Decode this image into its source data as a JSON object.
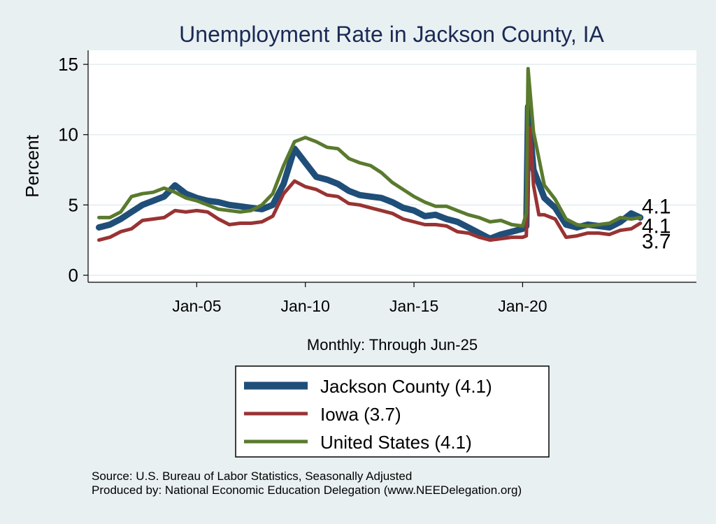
{
  "chart_data": {
    "type": "line",
    "title": "Unemployment Rate in Jackson  County, IA",
    "xlabel": "Monthly: Through Jun-25",
    "ylabel": "Percent",
    "ylim": [
      -0.5,
      16
    ],
    "yticks": [
      0,
      5,
      10,
      15
    ],
    "xlim": [
      2000.0,
      2028.0
    ],
    "xticks": [
      {
        "value": 2005.0,
        "label": "Jan-05"
      },
      {
        "value": 2010.0,
        "label": "Jan-10"
      },
      {
        "value": 2015.0,
        "label": "Jan-15"
      },
      {
        "value": 2020.0,
        "label": "Jan-20"
      }
    ],
    "grid": true,
    "legend_position": "bottom",
    "series": [
      {
        "name": "Jackson  County (4.1)",
        "color": "#1f4e79",
        "last_label": "4.1",
        "points": [
          [
            2000.5,
            3.4
          ],
          [
            2001.0,
            3.6
          ],
          [
            2001.5,
            4.0
          ],
          [
            2002.0,
            4.5
          ],
          [
            2002.5,
            5.0
          ],
          [
            2003.0,
            5.3
          ],
          [
            2003.5,
            5.6
          ],
          [
            2004.0,
            6.4
          ],
          [
            2004.5,
            5.8
          ],
          [
            2005.0,
            5.5
          ],
          [
            2005.5,
            5.3
          ],
          [
            2006.0,
            5.2
          ],
          [
            2006.5,
            5.0
          ],
          [
            2007.0,
            4.9
          ],
          [
            2007.5,
            4.8
          ],
          [
            2008.0,
            4.7
          ],
          [
            2008.5,
            5.0
          ],
          [
            2009.0,
            6.5
          ],
          [
            2009.5,
            9.0
          ],
          [
            2010.0,
            8.0
          ],
          [
            2010.5,
            7.0
          ],
          [
            2011.0,
            6.8
          ],
          [
            2011.5,
            6.5
          ],
          [
            2012.0,
            6.0
          ],
          [
            2012.5,
            5.7
          ],
          [
            2013.0,
            5.6
          ],
          [
            2013.5,
            5.5
          ],
          [
            2014.0,
            5.2
          ],
          [
            2014.5,
            4.8
          ],
          [
            2015.0,
            4.6
          ],
          [
            2015.5,
            4.2
          ],
          [
            2016.0,
            4.3
          ],
          [
            2016.5,
            4.0
          ],
          [
            2017.0,
            3.8
          ],
          [
            2017.5,
            3.4
          ],
          [
            2018.0,
            3.0
          ],
          [
            2018.5,
            2.6
          ],
          [
            2019.0,
            2.9
          ],
          [
            2019.5,
            3.1
          ],
          [
            2020.0,
            3.3
          ],
          [
            2020.17,
            3.5
          ],
          [
            2020.25,
            12.0
          ],
          [
            2020.5,
            7.5
          ],
          [
            2021.0,
            5.5
          ],
          [
            2021.5,
            4.8
          ],
          [
            2022.0,
            3.6
          ],
          [
            2022.5,
            3.4
          ],
          [
            2023.0,
            3.6
          ],
          [
            2023.5,
            3.5
          ],
          [
            2024.0,
            3.4
          ],
          [
            2024.5,
            3.8
          ],
          [
            2025.0,
            4.4
          ],
          [
            2025.42,
            4.1
          ]
        ]
      },
      {
        "name": "Iowa (3.7)",
        "color": "#993333",
        "last_label": "3.7",
        "points": [
          [
            2000.5,
            2.5
          ],
          [
            2001.0,
            2.7
          ],
          [
            2001.5,
            3.1
          ],
          [
            2002.0,
            3.3
          ],
          [
            2002.5,
            3.9
          ],
          [
            2003.0,
            4.0
          ],
          [
            2003.5,
            4.1
          ],
          [
            2004.0,
            4.6
          ],
          [
            2004.5,
            4.5
          ],
          [
            2005.0,
            4.6
          ],
          [
            2005.5,
            4.5
          ],
          [
            2006.0,
            4.0
          ],
          [
            2006.5,
            3.6
          ],
          [
            2007.0,
            3.7
          ],
          [
            2007.5,
            3.7
          ],
          [
            2008.0,
            3.8
          ],
          [
            2008.5,
            4.2
          ],
          [
            2009.0,
            5.8
          ],
          [
            2009.5,
            6.7
          ],
          [
            2010.0,
            6.3
          ],
          [
            2010.5,
            6.1
          ],
          [
            2011.0,
            5.7
          ],
          [
            2011.5,
            5.6
          ],
          [
            2012.0,
            5.1
          ],
          [
            2012.5,
            5.0
          ],
          [
            2013.0,
            4.8
          ],
          [
            2013.5,
            4.6
          ],
          [
            2014.0,
            4.4
          ],
          [
            2014.5,
            4.0
          ],
          [
            2015.0,
            3.8
          ],
          [
            2015.5,
            3.6
          ],
          [
            2016.0,
            3.6
          ],
          [
            2016.5,
            3.5
          ],
          [
            2017.0,
            3.1
          ],
          [
            2017.5,
            3.0
          ],
          [
            2018.0,
            2.7
          ],
          [
            2018.5,
            2.5
          ],
          [
            2019.0,
            2.6
          ],
          [
            2019.5,
            2.7
          ],
          [
            2020.0,
            2.7
          ],
          [
            2020.17,
            2.8
          ],
          [
            2020.33,
            10.5
          ],
          [
            2020.5,
            6.4
          ],
          [
            2020.75,
            4.3
          ],
          [
            2021.0,
            4.3
          ],
          [
            2021.5,
            4.0
          ],
          [
            2022.0,
            2.7
          ],
          [
            2022.5,
            2.8
          ],
          [
            2023.0,
            3.0
          ],
          [
            2023.5,
            3.0
          ],
          [
            2024.0,
            2.9
          ],
          [
            2024.5,
            3.2
          ],
          [
            2025.0,
            3.3
          ],
          [
            2025.42,
            3.7
          ]
        ]
      },
      {
        "name": "United States (4.1)",
        "color": "#5a7a2e",
        "last_label": "4.1",
        "points": [
          [
            2000.5,
            4.1
          ],
          [
            2001.0,
            4.1
          ],
          [
            2001.5,
            4.5
          ],
          [
            2002.0,
            5.6
          ],
          [
            2002.5,
            5.8
          ],
          [
            2003.0,
            5.9
          ],
          [
            2003.5,
            6.2
          ],
          [
            2004.0,
            5.9
          ],
          [
            2004.5,
            5.5
          ],
          [
            2005.0,
            5.3
          ],
          [
            2005.5,
            5.0
          ],
          [
            2006.0,
            4.7
          ],
          [
            2006.5,
            4.6
          ],
          [
            2007.0,
            4.5
          ],
          [
            2007.5,
            4.6
          ],
          [
            2008.0,
            5.0
          ],
          [
            2008.5,
            5.8
          ],
          [
            2009.0,
            7.8
          ],
          [
            2009.5,
            9.5
          ],
          [
            2010.0,
            9.8
          ],
          [
            2010.5,
            9.5
          ],
          [
            2011.0,
            9.1
          ],
          [
            2011.5,
            9.0
          ],
          [
            2012.0,
            8.3
          ],
          [
            2012.5,
            8.0
          ],
          [
            2013.0,
            7.8
          ],
          [
            2013.5,
            7.3
          ],
          [
            2014.0,
            6.6
          ],
          [
            2014.5,
            6.1
          ],
          [
            2015.0,
            5.6
          ],
          [
            2015.5,
            5.2
          ],
          [
            2016.0,
            4.9
          ],
          [
            2016.5,
            4.9
          ],
          [
            2017.0,
            4.6
          ],
          [
            2017.5,
            4.3
          ],
          [
            2018.0,
            4.1
          ],
          [
            2018.5,
            3.8
          ],
          [
            2019.0,
            3.9
          ],
          [
            2019.5,
            3.6
          ],
          [
            2020.0,
            3.5
          ],
          [
            2020.17,
            4.4
          ],
          [
            2020.25,
            14.7
          ],
          [
            2020.5,
            10.2
          ],
          [
            2021.0,
            6.4
          ],
          [
            2021.5,
            5.4
          ],
          [
            2022.0,
            4.0
          ],
          [
            2022.5,
            3.6
          ],
          [
            2023.0,
            3.5
          ],
          [
            2023.5,
            3.6
          ],
          [
            2024.0,
            3.7
          ],
          [
            2024.5,
            4.1
          ],
          [
            2025.0,
            4.0
          ],
          [
            2025.42,
            4.1
          ]
        ]
      }
    ]
  },
  "source_line_1": "Source: U.S. Bureau of Labor Statistics, Seasonally Adjusted",
  "source_line_2": "Produced by: National Economic Education Delegation (www.NEEDelegation.org)"
}
